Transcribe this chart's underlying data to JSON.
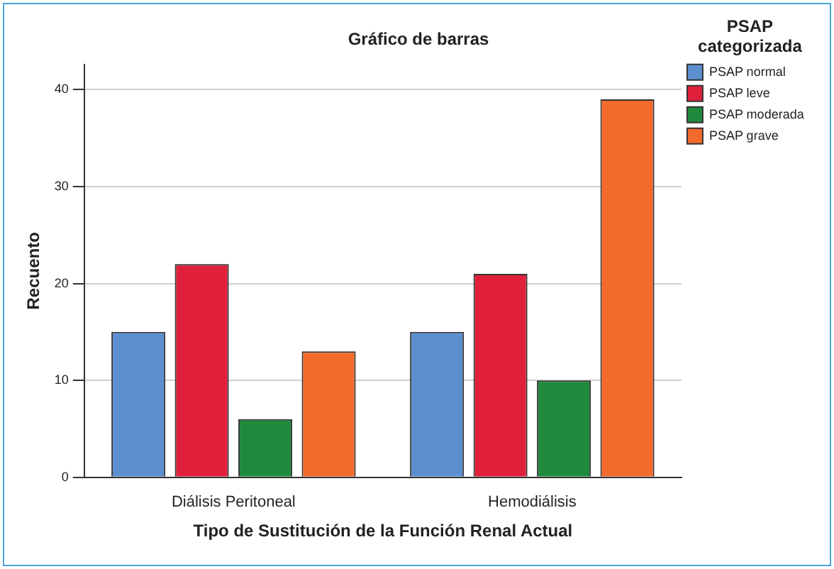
{
  "chart_data": {
    "type": "bar",
    "title": "Gráfico de barras",
    "xlabel": "Tipo de Sustitución de la Función Renal Actual",
    "ylabel": "Recuento",
    "legend_title": "PSAP categorizada",
    "categories": [
      "Diálisis Peritoneal",
      "Hemodiálisis"
    ],
    "series": [
      {
        "name": "PSAP normal",
        "color": "#5b8fd0",
        "values": [
          15,
          15
        ]
      },
      {
        "name": "PSAP leve",
        "color": "#e0203a",
        "values": [
          22,
          21
        ]
      },
      {
        "name": "PSAP moderada",
        "color": "#1f8a3c",
        "values": [
          6,
          10
        ]
      },
      {
        "name": "PSAP grave",
        "color": "#f26a2c",
        "values": [
          13,
          39
        ]
      }
    ],
    "ylim": [
      0,
      42.6
    ],
    "yticks": [
      0,
      10,
      20,
      30,
      40
    ],
    "grid": "y",
    "legend": "top right"
  }
}
